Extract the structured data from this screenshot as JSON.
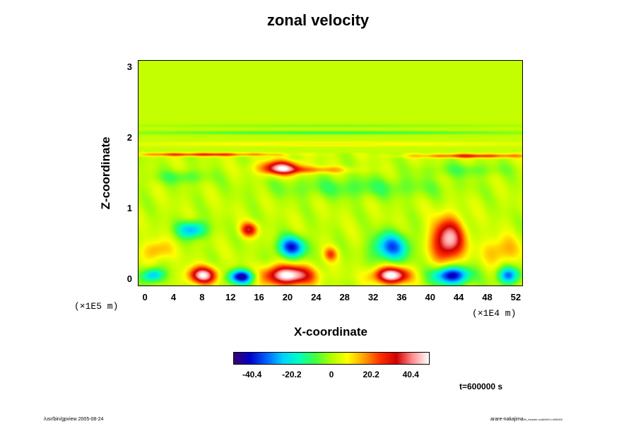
{
  "title": "zonal velocity",
  "footer_left": "/usr/bin/gpview 2005-08-24",
  "footer_right": "arare-nakajima",
  "footer_right_small": "00_Kessler.nc@VelX,t=600000",
  "time_label": "t=600000 s",
  "chart_data": {
    "type": "heatmap",
    "title": "zonal velocity",
    "xlabel": "X-coordinate",
    "ylabel": "Z-coordinate",
    "x_scale_label": "(×1E4 m)",
    "y_scale_label": "(×1E5 m)",
    "xlim": [
      -1,
      53
    ],
    "ylim": [
      -0.1,
      3.1
    ],
    "x_ticks": [
      "0",
      "4",
      "8",
      "12",
      "16",
      "20",
      "24",
      "28",
      "32",
      "36",
      "40",
      "44",
      "48",
      "52"
    ],
    "y_ticks": [
      "0",
      "1",
      "2",
      "3"
    ],
    "colorbar": {
      "ticks": [
        "-40.4",
        "-20.2",
        "0",
        "20.2",
        "40.4"
      ],
      "range": [
        -50,
        50
      ],
      "colors": [
        "#3a0070",
        "#0000c8",
        "#0060ff",
        "#00d0ff",
        "#00ffc0",
        "#40ff40",
        "#b0ff00",
        "#ffff00",
        "#ffa000",
        "#ff3000",
        "#d00000",
        "#ff9090",
        "#ffffff"
      ]
    },
    "background_value": 2,
    "features": [
      {
        "x": 8,
        "z": 0.05,
        "value": 45,
        "rx": 2.0,
        "rz": 0.12
      },
      {
        "x": 13.5,
        "z": 0.03,
        "value": -48,
        "rx": 1.8,
        "rz": 0.1
      },
      {
        "x": 20,
        "z": 0.05,
        "value": 50,
        "rx": 3.5,
        "rz": 0.14
      },
      {
        "x": 34.5,
        "z": 0.05,
        "value": 50,
        "rx": 2.5,
        "rz": 0.12
      },
      {
        "x": 43,
        "z": 0.05,
        "value": -48,
        "rx": 2.5,
        "rz": 0.13
      },
      {
        "x": 51,
        "z": 0.05,
        "value": -35,
        "rx": 1.5,
        "rz": 0.12
      },
      {
        "x": 1,
        "z": 0.05,
        "value": -30,
        "rx": 1.5,
        "rz": 0.1
      },
      {
        "x": 42.5,
        "z": 0.55,
        "value": 45,
        "rx": 2.2,
        "rz": 0.3
      },
      {
        "x": 20.5,
        "z": 0.45,
        "value": -40,
        "rx": 2.0,
        "rz": 0.15
      },
      {
        "x": 34.5,
        "z": 0.45,
        "value": -35,
        "rx": 2.5,
        "rz": 0.2
      },
      {
        "x": 6.5,
        "z": 0.7,
        "value": -30,
        "rx": 2.0,
        "rz": 0.12
      },
      {
        "x": 14.5,
        "z": 0.7,
        "value": 30,
        "rx": 1.2,
        "rz": 0.1
      },
      {
        "x": 50,
        "z": 0.4,
        "value": 15,
        "rx": 2.5,
        "rz": 0.2
      },
      {
        "x": 1.5,
        "z": 0.4,
        "value": 15,
        "rx": 2.0,
        "rz": 0.15
      },
      {
        "x": 26,
        "z": 0.35,
        "value": 20,
        "rx": 1.0,
        "rz": 0.1
      },
      {
        "x": 19,
        "z": 1.58,
        "value": 42,
        "rx": 2.8,
        "rz": 0.1
      },
      {
        "x": 24,
        "z": 1.55,
        "value": 15,
        "rx": 5.0,
        "rz": 0.05
      },
      {
        "x": 46,
        "z": 1.75,
        "value": 25,
        "rx": 8.0,
        "rz": 0.03
      },
      {
        "x": 8,
        "z": 1.77,
        "value": 25,
        "rx": 10.0,
        "rz": 0.025
      },
      {
        "x": 30,
        "z": 1.3,
        "value": -10,
        "rx": 12.0,
        "rz": 0.15
      },
      {
        "x": 5,
        "z": 1.45,
        "value": -10,
        "rx": 4.0,
        "rz": 0.1
      },
      {
        "x": 45,
        "z": 1.55,
        "value": -8,
        "rx": 6.0,
        "rz": 0.1
      },
      {
        "x": 26,
        "z": 2.08,
        "value": -12,
        "rx": 30.0,
        "rz": 0.025
      },
      {
        "x": 26,
        "z": 2.18,
        "value": -6,
        "rx": 30.0,
        "rz": 0.02
      },
      {
        "x": 26,
        "z": 1.92,
        "value": 8,
        "rx": 30.0,
        "rz": 0.03
      }
    ]
  }
}
